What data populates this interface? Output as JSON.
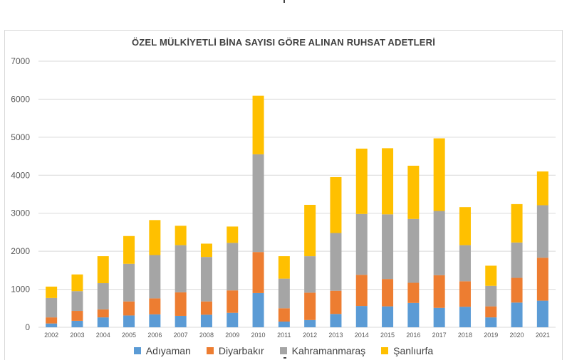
{
  "chart_data": {
    "type": "bar",
    "stacked": true,
    "title": "ÖZEL MÜLKİYETLİ BİNA SAYISI GÖRE ALINAN RUHSAT ADETLERİ",
    "xlabel": "",
    "ylabel": "",
    "ylim": [
      0,
      7000
    ],
    "yticks": [
      "0",
      "1000",
      "2000",
      "3000",
      "4000",
      "5000",
      "6000",
      "7000"
    ],
    "grid": true,
    "legend_position": "bottom",
    "categories": [
      "2002",
      "2003",
      "2004",
      "2005",
      "2006",
      "2007",
      "2008",
      "2009",
      "2010",
      "2011",
      "2012",
      "2013",
      "2014",
      "2015",
      "2016",
      "2017",
      "2018",
      "2019",
      "2020",
      "2021"
    ],
    "series": [
      {
        "name": "Adıyaman",
        "color": "#5b9bd5",
        "values": [
          100,
          170,
          260,
          310,
          340,
          300,
          330,
          380,
          900,
          150,
          190,
          350,
          560,
          550,
          640,
          510,
          540,
          260,
          650,
          700
        ]
      },
      {
        "name": "Diyarbakır",
        "color": "#ed7d31",
        "values": [
          160,
          260,
          210,
          370,
          420,
          620,
          350,
          590,
          1080,
          350,
          720,
          610,
          820,
          720,
          530,
          860,
          670,
          290,
          650,
          1130
        ]
      },
      {
        "name": "Kahramanmaraş",
        "color": "#a5a5a5",
        "values": [
          510,
          520,
          690,
          990,
          1140,
          1240,
          1170,
          1250,
          2570,
          780,
          960,
          1520,
          1600,
          1700,
          1680,
          1690,
          950,
          540,
          930,
          1380
        ]
      },
      {
        "name": "Şanlıurfa",
        "color": "#ffc000",
        "values": [
          300,
          440,
          710,
          730,
          920,
          510,
          350,
          430,
          1540,
          590,
          1350,
          1470,
          1720,
          1740,
          1400,
          1910,
          1000,
          530,
          1010,
          890
        ]
      }
    ]
  }
}
